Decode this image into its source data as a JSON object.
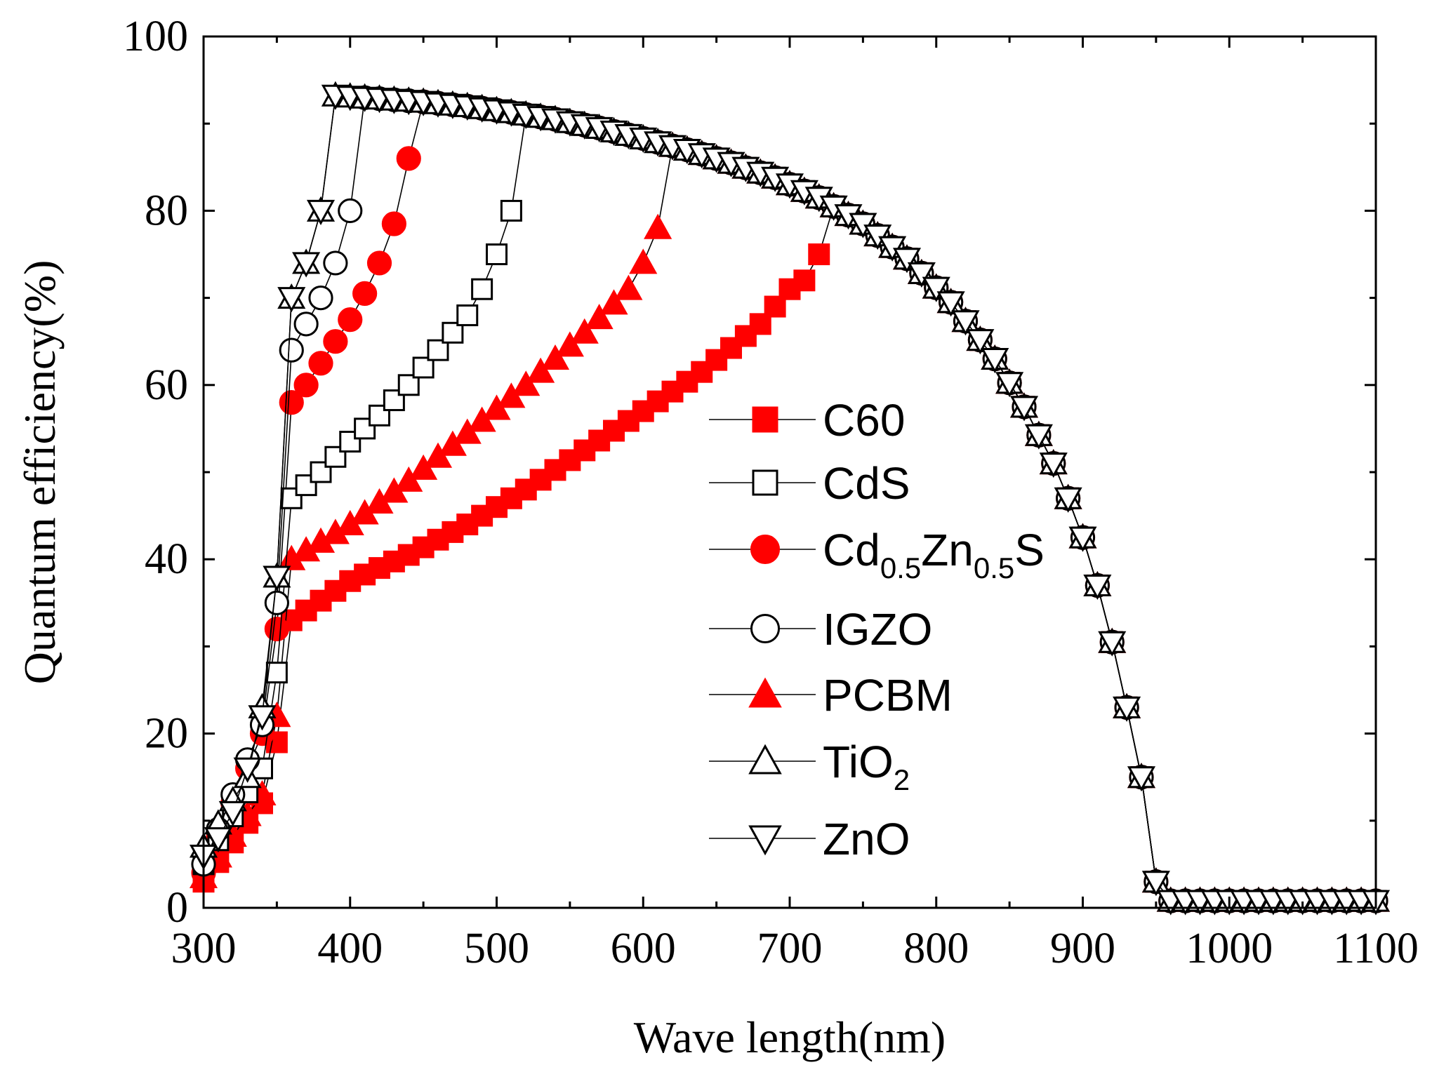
{
  "chart_data": {
    "type": "line",
    "title": "",
    "xlabel": "Wave length(nm)",
    "ylabel": "Quantum efficiency(%)",
    "xlim": [
      300,
      1100
    ],
    "ylim": [
      0,
      100
    ],
    "xticks": [
      300,
      400,
      500,
      600,
      700,
      800,
      900,
      1000,
      1100
    ],
    "xtick_labels": [
      "300",
      "400",
      "500",
      "600",
      "700",
      "800",
      "900",
      "1000",
      "1100"
    ],
    "yticks": [
      0,
      20,
      40,
      60,
      80,
      100
    ],
    "ytick_labels": [
      "0",
      "20",
      "40",
      "60",
      "80",
      "100"
    ],
    "grid": false,
    "legend_position": "center-right",
    "common_curve": {
      "x": [
        450,
        480,
        510,
        540,
        570,
        600,
        630,
        660,
        690,
        720,
        750,
        780,
        810,
        840,
        860,
        880,
        890,
        900,
        910,
        920,
        930,
        940,
        950
      ],
      "y": [
        92.5,
        92.0,
        91.3,
        90.5,
        89.5,
        88.3,
        87.0,
        85.5,
        83.8,
        81.5,
        78.5,
        74.5,
        69.5,
        63.0,
        57.5,
        51.0,
        47.0,
        42.5,
        37.0,
        30.5,
        23.0,
        15.0,
        3.0
      ]
    },
    "tail": {
      "x_start": 950,
      "x_end": 1100,
      "value": 0.8
    },
    "series": [
      {
        "name": "C60",
        "label_main": "C60",
        "label_sub1": "",
        "label_mid": "",
        "label_sub2": "",
        "label_end": "",
        "marker": "square",
        "filled": true,
        "color": "#ff0000",
        "series_id": "c60",
        "x": [
          300,
          340,
          350,
          360,
          400,
          440,
          480,
          520,
          560,
          600,
          640,
          680,
          700,
          710,
          720
        ],
        "y": [
          3,
          12,
          19,
          33,
          37.5,
          40.5,
          44,
          48,
          52.5,
          57,
          61.5,
          67,
          71,
          72,
          75
        ]
      },
      {
        "name": "CdS",
        "label_main": "CdS",
        "label_sub1": "",
        "label_mid": "",
        "label_sub2": "",
        "label_end": "",
        "marker": "square",
        "filled": false,
        "color": "#000000",
        "series_id": "cds",
        "x": [
          300,
          340,
          350,
          360,
          380,
          400,
          420,
          440,
          460,
          480,
          490,
          500,
          510
        ],
        "y": [
          5,
          16,
          27,
          47,
          50,
          53.5,
          56.5,
          60,
          64,
          68,
          71,
          75,
          80
        ]
      },
      {
        "name": "Cd0.5Zn0.5S",
        "label_main": "Cd",
        "label_sub1": "0.5",
        "label_mid": "Zn",
        "label_sub2": "0.5",
        "label_end": "S",
        "marker": "circle",
        "filled": true,
        "color": "#ff0000",
        "series_id": "cdzns",
        "x": [
          300,
          340,
          350,
          360,
          370,
          380,
          390,
          400,
          410,
          420,
          430,
          440
        ],
        "y": [
          4,
          20,
          32,
          58,
          60,
          62.5,
          65,
          67.5,
          70.5,
          74,
          78.5,
          86
        ]
      },
      {
        "name": "IGZO",
        "label_main": "IGZO",
        "label_sub1": "",
        "label_mid": "",
        "label_sub2": "",
        "label_end": "",
        "marker": "circle",
        "filled": false,
        "color": "#000000",
        "series_id": "igzo",
        "x": [
          300,
          340,
          350,
          360,
          370,
          380,
          390,
          400
        ],
        "y": [
          5,
          21,
          35,
          64,
          67,
          70,
          74,
          80
        ]
      },
      {
        "name": "PCBM",
        "label_main": "PCBM",
        "label_sub1": "",
        "label_mid": "",
        "label_sub2": "",
        "label_end": "",
        "marker": "triangle-up",
        "filled": true,
        "color": "#ff0000",
        "series_id": "pcbm",
        "x": [
          300,
          340,
          350,
          360,
          400,
          440,
          480,
          520,
          560,
          590,
          600,
          610
        ],
        "y": [
          3.5,
          13,
          22,
          40,
          44,
          49,
          54.5,
          60,
          66,
          71,
          74,
          78
        ]
      },
      {
        "name": "TiO2",
        "label_main": "TiO",
        "label_sub1": "2",
        "label_mid": "",
        "label_sub2": "",
        "label_end": "",
        "marker": "triangle-up",
        "filled": false,
        "color": "#000000",
        "series_id": "tio2",
        "x": [
          300,
          330,
          340,
          350,
          360,
          370,
          380
        ],
        "y": [
          7,
          15,
          23,
          38,
          70,
          74,
          80
        ]
      },
      {
        "name": "ZnO",
        "label_main": "ZnO",
        "label_sub1": "",
        "label_mid": "",
        "label_sub2": "",
        "label_end": "",
        "marker": "triangle-down",
        "filled": false,
        "color": "#000000",
        "series_id": "zno",
        "x": [
          300,
          310,
          320,
          330,
          340,
          350,
          360,
          370,
          380
        ],
        "y": [
          6,
          8,
          11,
          16,
          22,
          38,
          70,
          74,
          80
        ]
      }
    ]
  }
}
